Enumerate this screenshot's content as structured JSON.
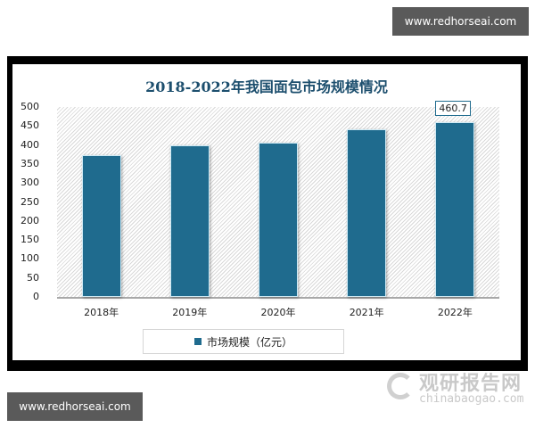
{
  "watermarks": {
    "top": "www.redhorseai.com",
    "bottom": "www.redhorseai.com"
  },
  "logo": {
    "cn": "观研报告网",
    "en": "chinabaogao.com"
  },
  "colors": {
    "bar": "#1f6b8e",
    "title": "#1d4f6e"
  },
  "chart_data": {
    "type": "bar",
    "title": "2018-2022年我国面包市场规模情况",
    "categories": [
      "2018年",
      "2019年",
      "2020年",
      "2021年",
      "2022年"
    ],
    "series": [
      {
        "name": "市场规模（亿元）",
        "values": [
          373,
          399,
          406,
          441,
          460.7
        ]
      }
    ],
    "data_labels": [
      {
        "category": "2022年",
        "text": "460.7"
      }
    ],
    "xlabel": "",
    "ylabel": "",
    "ylim": [
      0,
      500
    ],
    "yticks": [
      "500",
      "450",
      "400",
      "350",
      "300",
      "250",
      "200",
      "150",
      "100",
      "50",
      "0"
    ],
    "grid": false,
    "legend_position": "bottom",
    "legend": "市场规模（亿元）"
  }
}
